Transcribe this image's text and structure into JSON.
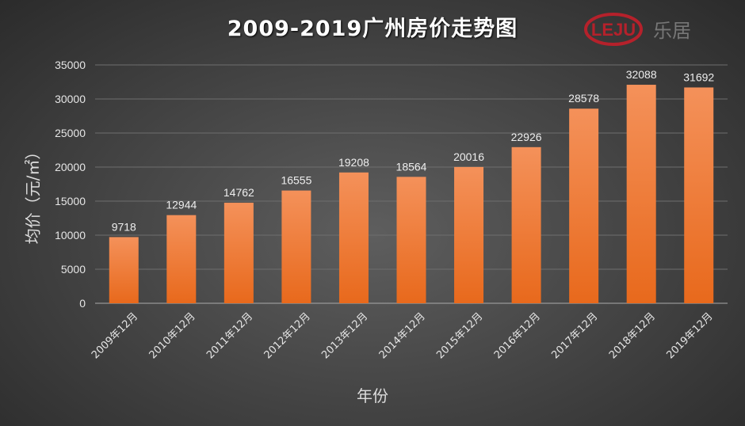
{
  "chart_data": {
    "type": "bar",
    "title": "2009-2019广州房价走势图",
    "xlabel": "年份",
    "ylabel": "均价（元/㎡）",
    "ylim": [
      0,
      35000
    ],
    "yticks": [
      0,
      5000,
      10000,
      15000,
      20000,
      25000,
      30000,
      35000
    ],
    "grid": true,
    "categories": [
      "2009年12月",
      "2010年12月",
      "2011年12月",
      "2012年12月",
      "2013年12月",
      "2014年12月",
      "2015年12月",
      "2016年12月",
      "2017年12月",
      "2018年12月",
      "2019年12月"
    ],
    "values": [
      9718,
      12944,
      14762,
      16555,
      19208,
      18564,
      20016,
      22926,
      28578,
      32088,
      31692
    ],
    "bar_color": "#f0822f"
  },
  "logo": {
    "text": "LEJU",
    "cn": "乐居",
    "color": "#b5212b"
  }
}
